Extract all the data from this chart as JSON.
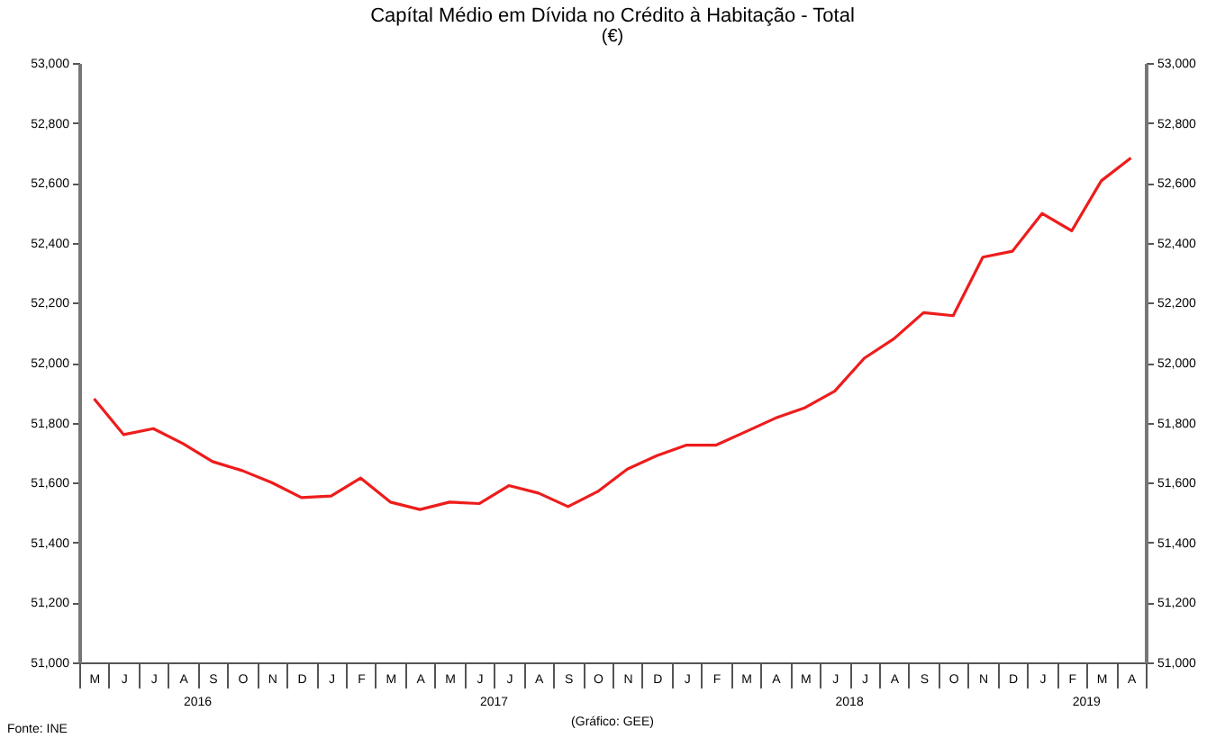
{
  "chart_data": {
    "type": "line",
    "title": "Capítal Médio em Dívida no Crédito à Habitação - Total",
    "subtitle": "(€)",
    "categories": [
      "M",
      "J",
      "J",
      "A",
      "S",
      "O",
      "N",
      "D",
      "J",
      "F",
      "M",
      "A",
      "M",
      "J",
      "J",
      "A",
      "S",
      "O",
      "N",
      "D",
      "J",
      "F",
      "M",
      "A",
      "M",
      "J",
      "J",
      "A",
      "S",
      "O",
      "N",
      "D",
      "J",
      "F",
      "M",
      "A"
    ],
    "series": [
      {
        "color": "#ee1c1c",
        "values": [
          51880,
          51760,
          51780,
          51730,
          51670,
          51640,
          51600,
          51550,
          51555,
          51615,
          51535,
          51510,
          51535,
          51530,
          51590,
          51565,
          51520,
          51570,
          51645,
          51690,
          51725,
          51725,
          51770,
          51815,
          51850,
          51905,
          52015,
          52080,
          52167,
          52157,
          52352,
          52372,
          52498,
          52440,
          52607,
          52683
        ]
      }
    ],
    "ylim": [
      51000,
      53000
    ],
    "yticks": [
      {
        "value": 51000,
        "label": "51,000"
      },
      {
        "value": 51200,
        "label": "51,200"
      },
      {
        "value": 51400,
        "label": "51,400"
      },
      {
        "value": 51600,
        "label": "51,600"
      },
      {
        "value": 51800,
        "label": "51,800"
      },
      {
        "value": 52000,
        "label": "52,000"
      },
      {
        "value": 52200,
        "label": "52,200"
      },
      {
        "value": 52400,
        "label": "52,400"
      },
      {
        "value": 52600,
        "label": "52,600"
      },
      {
        "value": 52800,
        "label": "52,800"
      },
      {
        "value": 53000,
        "label": "53,000"
      }
    ],
    "y2lim": [
      51000,
      53000
    ],
    "y2ticks": [
      {
        "value": 51000,
        "label": "51,000"
      },
      {
        "value": 51200,
        "label": "51,200"
      },
      {
        "value": 51400,
        "label": "51,400"
      },
      {
        "value": 51600,
        "label": "51,600"
      },
      {
        "value": 51800,
        "label": "51,800"
      },
      {
        "value": 52000,
        "label": "52,000"
      },
      {
        "value": 52200,
        "label": "52,200"
      },
      {
        "value": 52400,
        "label": "52,400"
      },
      {
        "value": 52600,
        "label": "52,600"
      },
      {
        "value": 52800,
        "label": "52,800"
      },
      {
        "value": 53000,
        "label": "53,000"
      }
    ],
    "grid": false,
    "legend": false,
    "marker": "none",
    "line_style": "solid",
    "annotations": [
      "2016",
      "2017",
      "2018",
      "2019",
      "Fonte: INE",
      "(Gráfico: GEE)"
    ]
  }
}
